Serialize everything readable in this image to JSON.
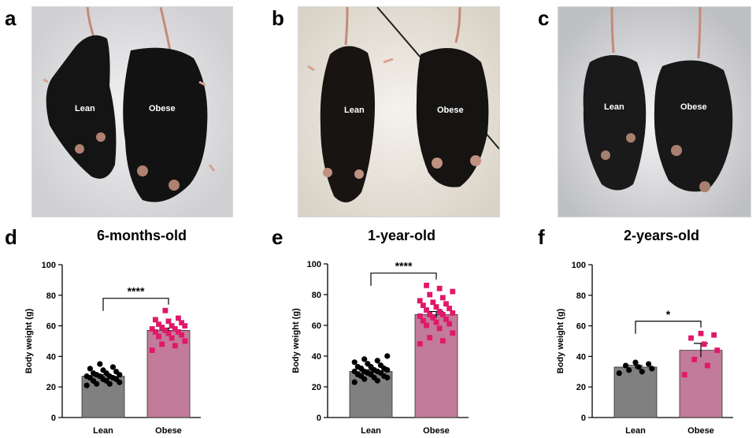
{
  "photo_panels": [
    {
      "letter": "a",
      "left_label": "Lean",
      "right_label": "Obese"
    },
    {
      "letter": "b",
      "left_label": "Lean",
      "right_label": "Obese"
    },
    {
      "letter": "c",
      "left_label": "Lean",
      "right_label": "Obese"
    }
  ],
  "colors": {
    "lean": "#808080",
    "obese": "#c27b99",
    "lean_point": "#000000",
    "obese_point": "#e0186a"
  },
  "chart_data": [
    {
      "letter": "d",
      "type": "bar",
      "title": "6-months-old",
      "categories": [
        "Lean",
        "Obese"
      ],
      "values": [
        27,
        57
      ],
      "errors": [
        1,
        1.5
      ],
      "ylabel": "Body weight (g)",
      "ylim": [
        0,
        100
      ],
      "yticks": [
        0,
        20,
        40,
        60,
        80,
        100
      ],
      "significance": "****",
      "points": [
        [
          21,
          22,
          22,
          23,
          24,
          24,
          25,
          25,
          26,
          26,
          27,
          27,
          27,
          28,
          28,
          29,
          29,
          30,
          31,
          32,
          33,
          35
        ],
        [
          44,
          47,
          48,
          50,
          52,
          53,
          54,
          55,
          56,
          56,
          57,
          58,
          58,
          59,
          60,
          60,
          61,
          62,
          63,
          64,
          65,
          70
        ]
      ]
    },
    {
      "letter": "e",
      "type": "bar",
      "title": "1-year-old",
      "categories": [
        "Lean",
        "Obese"
      ],
      "values": [
        30,
        67
      ],
      "errors": [
        1,
        2
      ],
      "ylabel": "Body weight (g)",
      "ylim": [
        0,
        100
      ],
      "yticks": [
        0,
        20,
        40,
        60,
        80,
        100
      ],
      "significance": "****",
      "points": [
        [
          23,
          24,
          25,
          26,
          26,
          27,
          27,
          28,
          28,
          29,
          29,
          30,
          30,
          30,
          31,
          31,
          32,
          32,
          33,
          33,
          34,
          35,
          36,
          37,
          38,
          40
        ],
        [
          48,
          50,
          52,
          55,
          58,
          60,
          61,
          62,
          63,
          64,
          65,
          66,
          67,
          67,
          68,
          69,
          70,
          71,
          72,
          73,
          74,
          75,
          76,
          78,
          80,
          82,
          84,
          86
        ]
      ]
    },
    {
      "letter": "f",
      "type": "bar",
      "title": "2-years-old",
      "categories": [
        "Lean",
        "Obese"
      ],
      "values": [
        33,
        44
      ],
      "errors": [
        1,
        4.5
      ],
      "ylabel": "Body weight (g)",
      "ylim": [
        0,
        100
      ],
      "yticks": [
        0,
        20,
        40,
        60,
        80,
        100
      ],
      "significance": "*",
      "points": [
        [
          29,
          30,
          31,
          32,
          33,
          34,
          35,
          36
        ],
        [
          28,
          34,
          38,
          44,
          48,
          52,
          54,
          55
        ]
      ]
    }
  ]
}
